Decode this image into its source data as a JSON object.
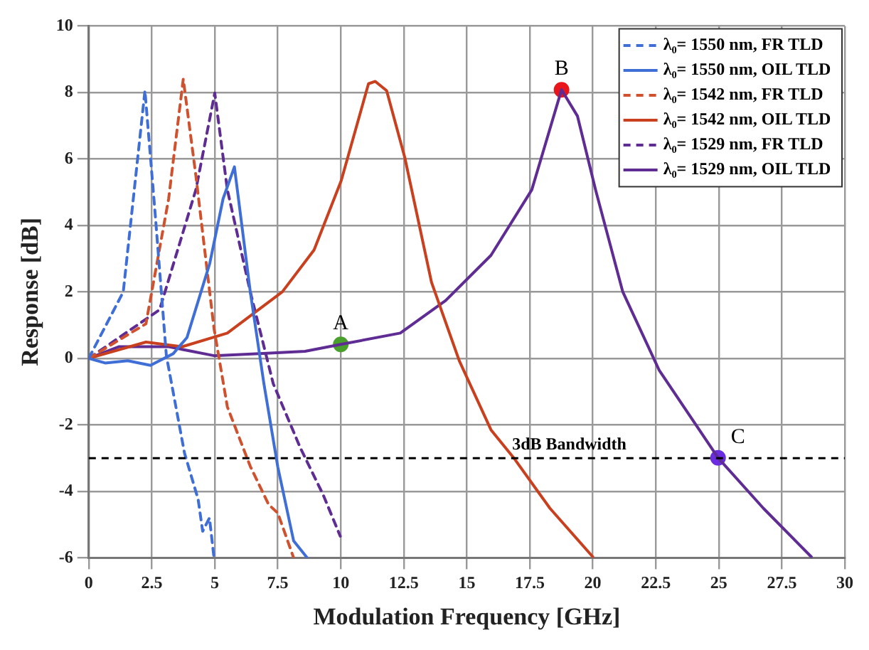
{
  "chart_data": {
    "type": "line",
    "xlabel": "Modulation Frequency [GHz]",
    "ylabel": "Response [dB]",
    "xlim": [
      0,
      30
    ],
    "xticks": [
      0,
      2.5,
      5,
      7.5,
      10,
      12.5,
      15,
      17.5,
      20,
      22.5,
      25,
      27.5,
      30
    ],
    "ylim": [
      -6,
      10
    ],
    "yticks": [
      -6,
      -4,
      -2,
      0,
      2,
      4,
      6,
      8,
      10
    ],
    "grid": true,
    "legend": "top right",
    "marker": "none",
    "series": [
      {
        "name": "λ₀= 1550 nm, FR TLD",
        "color": "#3f6fd6",
        "line_style": "dashed",
        "x": [
          0,
          1.37,
          2.23,
          2.63,
          3.08,
          3.8,
          4.34,
          4.52,
          4.79,
          4.97
        ],
        "values": [
          0,
          2.0,
          8.05,
          4.4,
          0.08,
          -2.85,
          -4.24,
          -5.2,
          -4.8,
          -6
        ]
      },
      {
        "name": "λ₀= 1550 nm, OIL TLD",
        "color": "#3f6fd6",
        "line_style": "solid",
        "x": [
          0,
          0.65,
          1.55,
          2.45,
          3.35,
          3.9,
          4.8,
          5.33,
          5.78,
          6.41,
          6.95,
          7.5,
          8.13,
          8.67
        ],
        "values": [
          0,
          -0.14,
          -0.07,
          -0.21,
          0.14,
          0.63,
          2.85,
          4.8,
          5.76,
          2.0,
          -0.76,
          -3.26,
          -5.49,
          -6
        ]
      },
      {
        "name": "λ₀= 1542 nm, FR TLD",
        "color": "#d0512e",
        "line_style": "dashed",
        "x": [
          0,
          2.27,
          3.17,
          3.75,
          4.25,
          4.97,
          5.5,
          6.41,
          7.14,
          7.5,
          8.13
        ],
        "values": [
          0,
          1.04,
          4.8,
          8.4,
          5.5,
          0.9,
          -1.46,
          -3.25,
          -4.4,
          -4.65,
          -6
        ]
      },
      {
        "name": "λ₀= 1542 nm, OIL TLD",
        "color": "#c9401f",
        "line_style": "solid",
        "x": [
          0,
          2.27,
          3.71,
          5.5,
          7.68,
          8.94,
          10.02,
          11.1,
          11.37,
          11.82,
          12.54,
          13.6,
          14.7,
          15.96,
          16.86,
          18.3,
          20.0
        ],
        "values": [
          0,
          0.49,
          0.35,
          0.76,
          2.0,
          3.26,
          5.35,
          8.26,
          8.33,
          8.05,
          6.04,
          2.29,
          -0.07,
          -2.15,
          -2.99,
          -4.51,
          -5.97
        ]
      },
      {
        "name": "λ₀= 1529 nm, FR TLD",
        "color": "#5e2c93",
        "line_style": "dashed",
        "x": [
          0,
          2.81,
          4.25,
          5.0,
          5.5,
          6.41,
          7.32,
          8.4,
          9.3,
          9.98
        ],
        "values": [
          0,
          1.46,
          5.07,
          7.98,
          5.07,
          2.0,
          -0.76,
          -2.7,
          -4.1,
          -5.35
        ]
      },
      {
        "name": "λ₀= 1529 nm, OIL TLD",
        "color": "#5e2c93",
        "line_style": "solid",
        "x": [
          0,
          1.19,
          3.17,
          4.97,
          6.77,
          8.58,
          10,
          12.36,
          14.16,
          15.96,
          17.58,
          18.76,
          19.39,
          20.11,
          21.19,
          22.63,
          24.97,
          26.77,
          28.67
        ],
        "values": [
          0,
          0.35,
          0.35,
          0.08,
          0.14,
          0.21,
          0.42,
          0.76,
          1.74,
          3.1,
          5.07,
          8.08,
          7.29,
          5.07,
          2.0,
          -0.35,
          -2.99,
          -4.51,
          -5.97
        ]
      },
      {
        "type": "scatter",
        "marker": "circle",
        "x": [
          10,
          18.76,
          24.97
        ],
        "values": [
          0.42,
          8.08,
          -2.99
        ],
        "colors": [
          "#4aa02c",
          "#e8161b",
          "#6a2ee0"
        ]
      }
    ],
    "ref_lines": [
      {
        "axis": "y",
        "value": -3,
        "label": "3dB Bandwidth",
        "color": "#000000",
        "line_style": "dashed"
      }
    ],
    "annotations": [
      {
        "text": "A",
        "x": 10,
        "y": 0.42
      },
      {
        "text": "B",
        "x": 18.76,
        "y": 8.08
      },
      {
        "text": "C",
        "x": 24.97,
        "y": -2.99
      }
    ]
  }
}
